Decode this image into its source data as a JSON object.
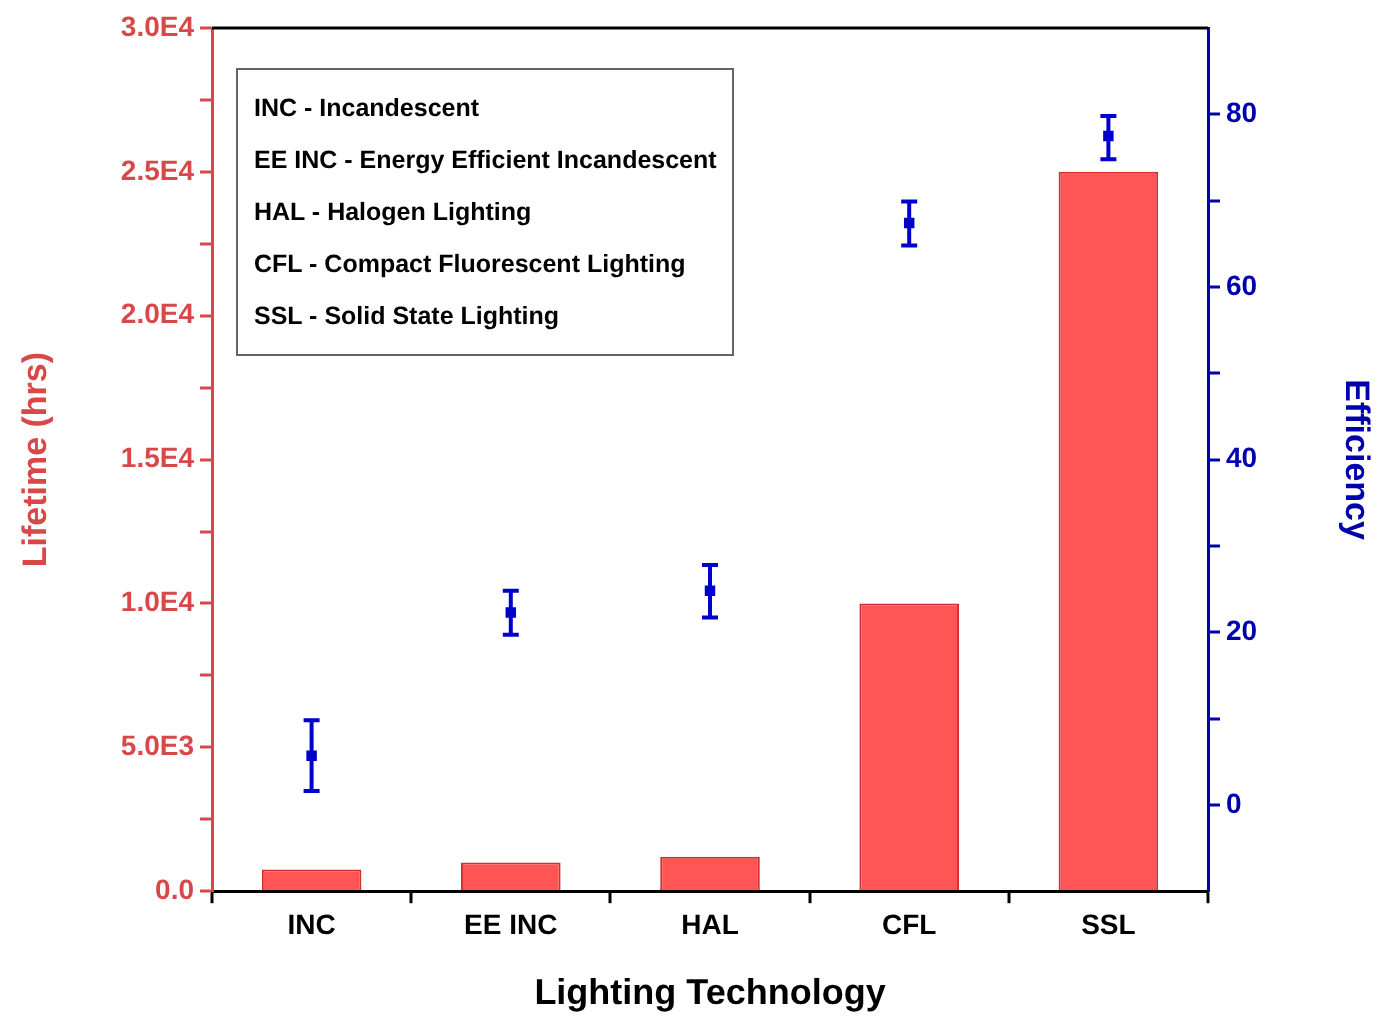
{
  "chart_data": {
    "type": "bar",
    "xlabel": "Lighting Technology",
    "ylabel": "Lifetime (hrs)",
    "y2label": "Efficiency",
    "categories": [
      "INC",
      "EE INC",
      "HAL",
      "CFL",
      "SSL"
    ],
    "series": [
      {
        "color": "#ff5555",
        "values": [
          750,
          1000,
          1200,
          10000,
          25000
        ]
      },
      {
        "type": "scatter",
        "axis": "y2",
        "color": "#0000cc",
        "marker": "square",
        "values": [
          5.7,
          22.3,
          24.8,
          67.4,
          77.5
        ],
        "errors": [
          [
            1.6,
            9.8
          ],
          [
            19.7,
            24.8
          ],
          [
            21.7,
            27.8
          ],
          [
            64.8,
            69.9
          ],
          [
            74.8,
            79.8
          ]
        ]
      }
    ],
    "ylim": [
      0,
      30000
    ],
    "yticks": [
      {
        "value": 0,
        "label": "0.0"
      },
      {
        "value": 2500,
        "label": null
      },
      {
        "value": 5000,
        "label": "5.0E3"
      },
      {
        "value": 7500,
        "label": null
      },
      {
        "value": 10000,
        "label": "1.0E4"
      },
      {
        "value": 12500,
        "label": null
      },
      {
        "value": 15000,
        "label": "1.5E4"
      },
      {
        "value": 17500,
        "label": null
      },
      {
        "value": 20000,
        "label": "2.0E4"
      },
      {
        "value": 22500,
        "label": null
      },
      {
        "value": 25000,
        "label": "2.5E4"
      },
      {
        "value": 27500,
        "label": null
      },
      {
        "value": 30000,
        "label": "3.0E4"
      }
    ],
    "y2lim": [
      -10,
      90
    ],
    "y2ticks": [
      0,
      {
        "value": 10,
        "label": null
      },
      20,
      {
        "value": 30,
        "label": null
      },
      40,
      {
        "value": 50,
        "label": null
      },
      60,
      {
        "value": 70,
        "label": null
      },
      80
    ],
    "annotations": [
      "INC - Incandescent",
      "EE INC - Energy Efficient Incandescent",
      "HAL - Halogen Lighting",
      "CFL - Compact Fluorescent Lighting",
      "SSL - Solid State Lighting"
    ],
    "grid": false,
    "legend": false
  }
}
